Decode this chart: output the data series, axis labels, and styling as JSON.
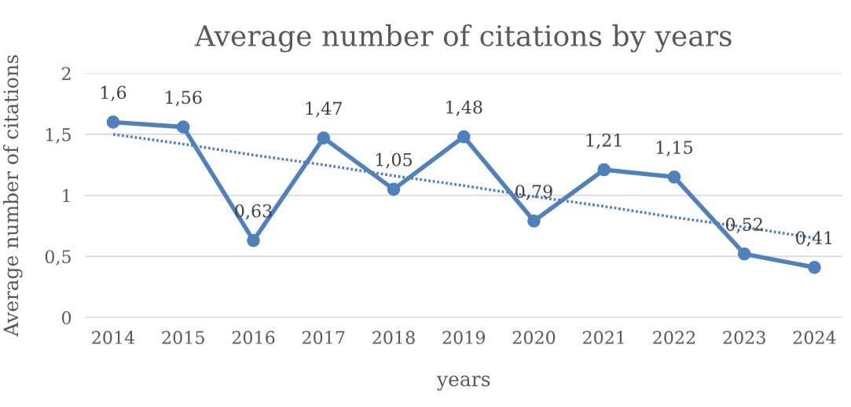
{
  "chart_data": {
    "type": "line",
    "title": "Average number of citations by years",
    "xlabel": "years",
    "ylabel": "Average number of citations",
    "categories": [
      "2014",
      "2015",
      "2016",
      "2017",
      "2018",
      "2019",
      "2020",
      "2021",
      "2022",
      "2023",
      "2024"
    ],
    "series": [
      {
        "color": "#4f81bd",
        "marker": "circle",
        "line_style": "solid",
        "values": [
          1.6,
          1.56,
          0.63,
          1.47,
          1.05,
          1.48,
          0.79,
          1.21,
          1.15,
          0.52,
          0.41
        ],
        "value_labels": [
          "1,6",
          "1,56",
          "0,63",
          "1,47",
          "1,05",
          "1,48",
          "0,79",
          "1,21",
          "1,15",
          "0,52",
          "0,41"
        ]
      },
      {
        "color": "#4f81bd",
        "marker": "none",
        "line_style": "dotted",
        "values": [
          1.5,
          1.42,
          1.33,
          1.25,
          1.16,
          1.08,
          0.99,
          0.91,
          0.82,
          0.74,
          0.65
        ]
      }
    ],
    "ylim": [
      0,
      2
    ],
    "yticks": [
      0,
      {
        "value": 0.5,
        "label": "0,5"
      },
      1,
      {
        "value": 1.5,
        "label": "1,5"
      },
      2
    ],
    "grid": "y",
    "legend": false
  }
}
